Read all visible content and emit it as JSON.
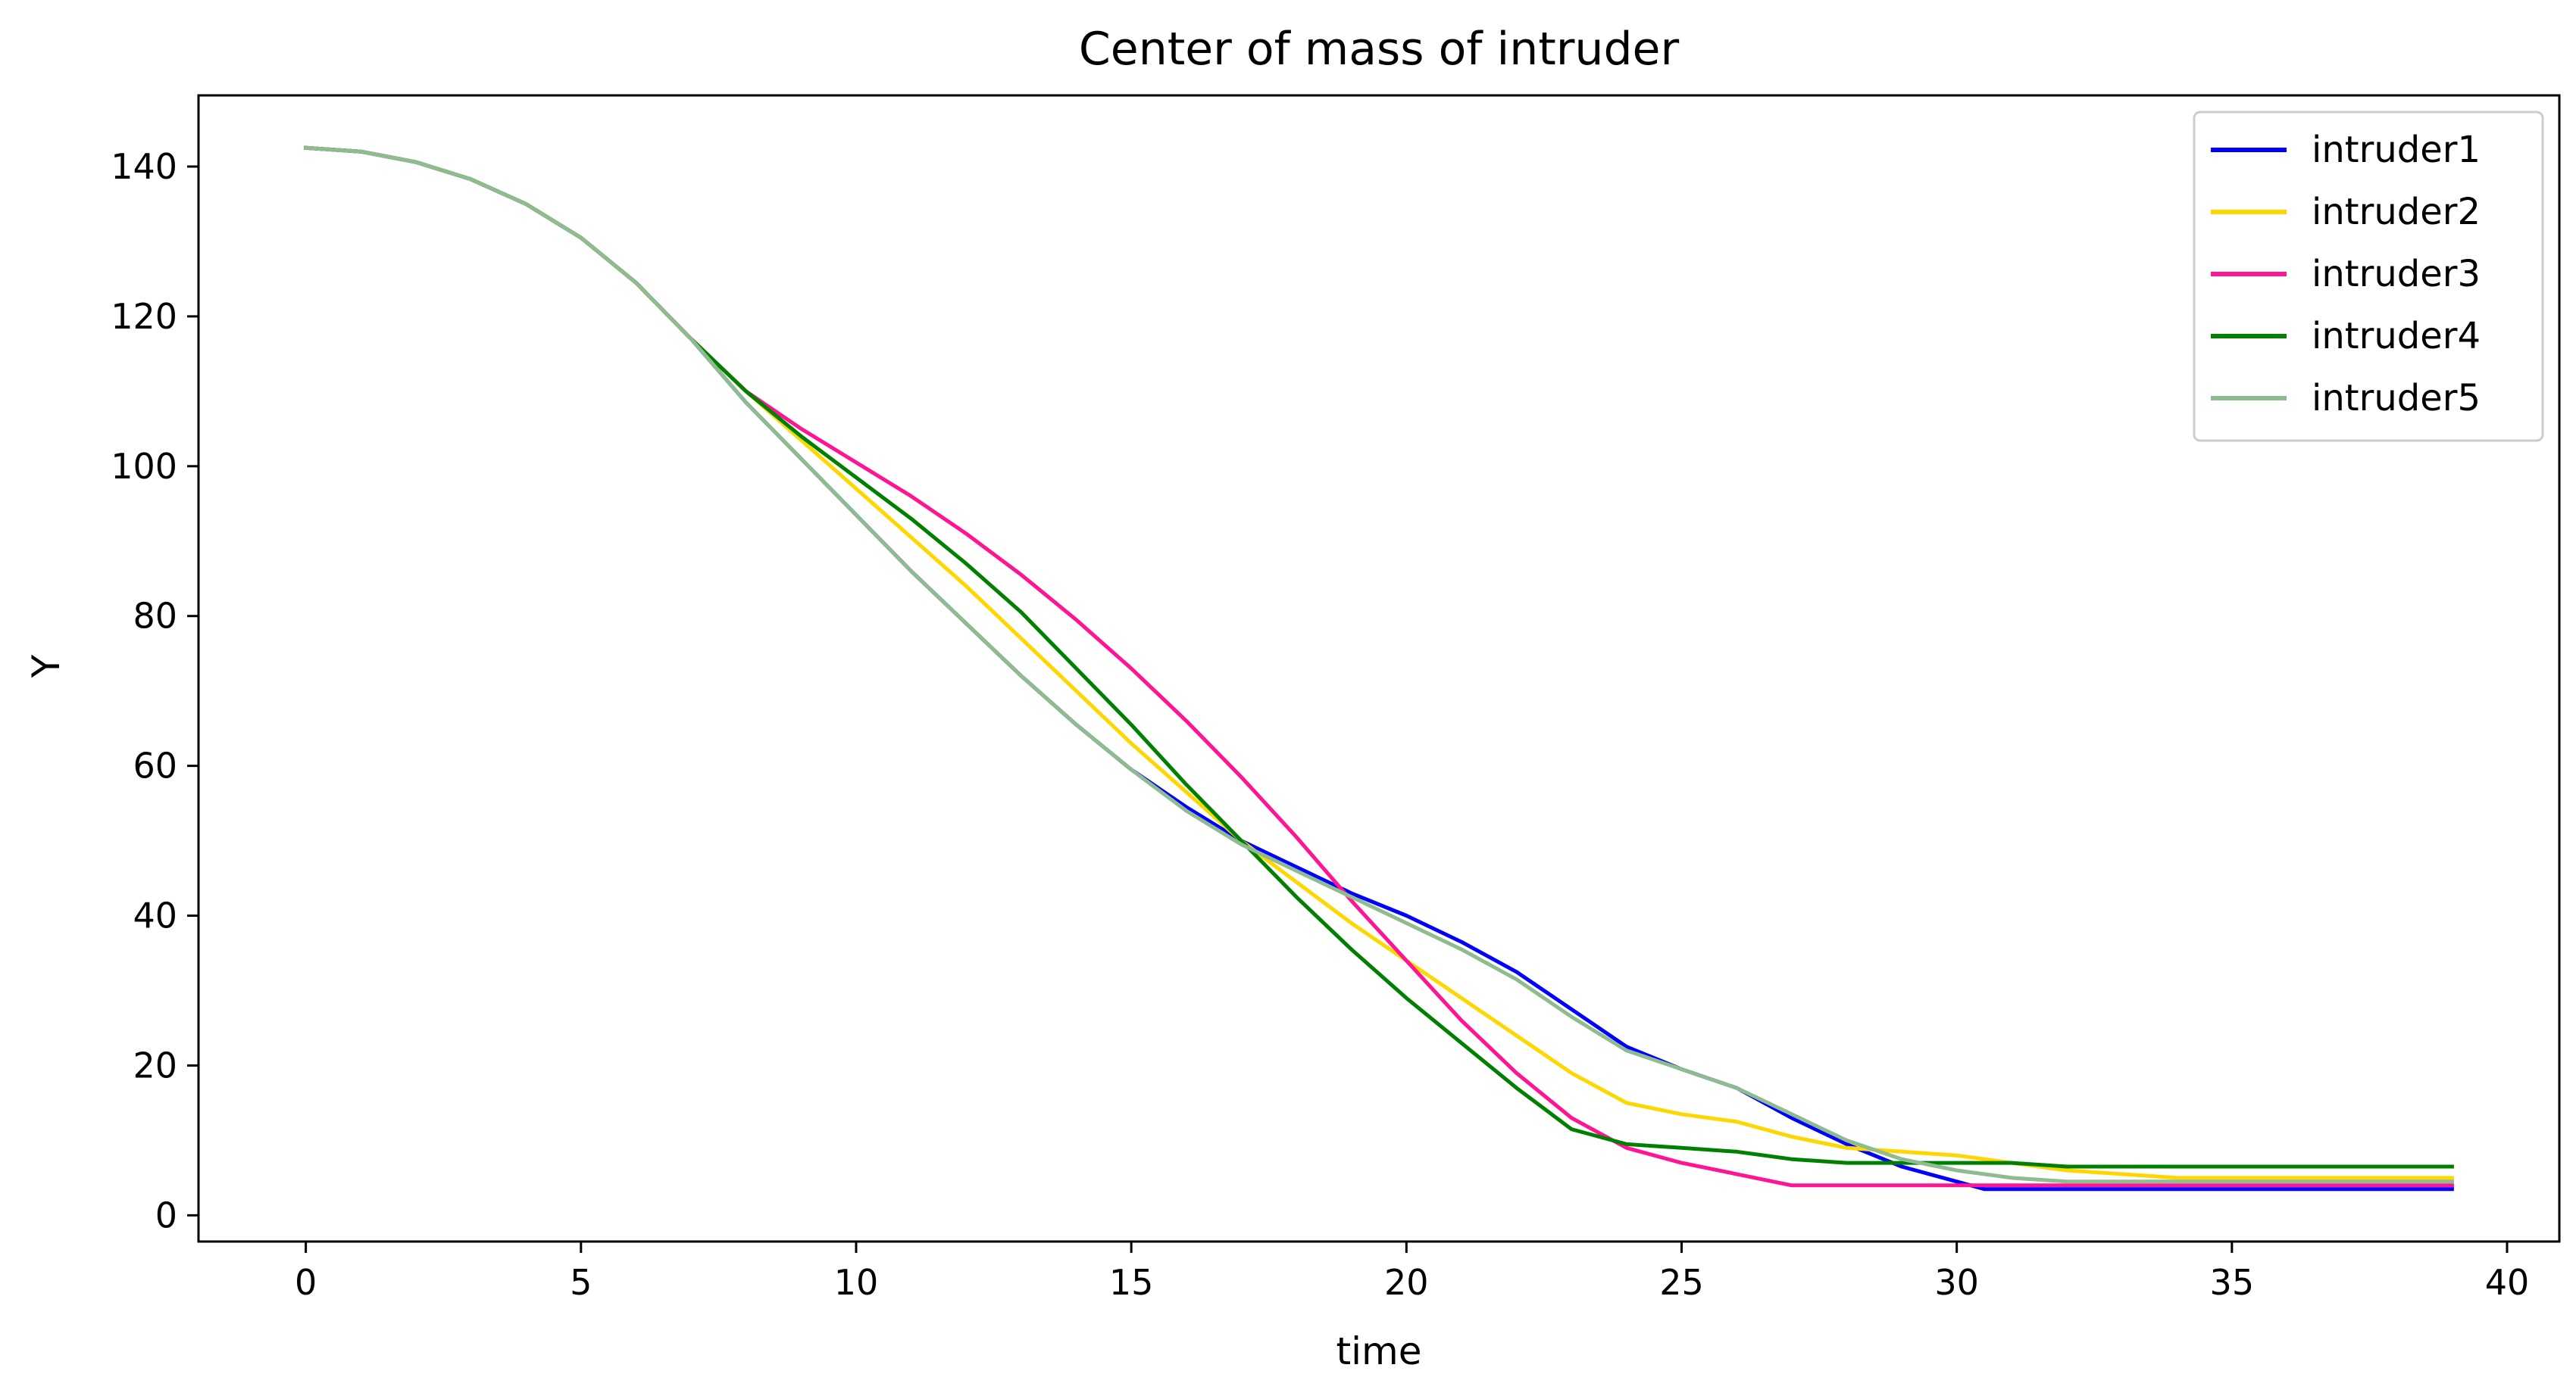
{
  "chart_data": {
    "type": "line",
    "title": "Center of mass of intruder",
    "xlabel": "time",
    "ylabel": "Y",
    "xlim": [
      -1.95,
      40.95
    ],
    "ylim": [
      -3.5,
      149.5
    ],
    "xticks": [
      0,
      5,
      10,
      15,
      20,
      25,
      30,
      35,
      40
    ],
    "yticks": [
      0,
      20,
      40,
      60,
      80,
      100,
      120,
      140
    ],
    "grid": false,
    "legend_position": "top-right",
    "series": [
      {
        "name": "intruder1",
        "color": "#0000ff",
        "points": [
          [
            0,
            142.5
          ],
          [
            1,
            142.0
          ],
          [
            2,
            140.6
          ],
          [
            3,
            138.3
          ],
          [
            4,
            135.0
          ],
          [
            5,
            130.5
          ],
          [
            6,
            124.5
          ],
          [
            7,
            117.0
          ],
          [
            8,
            108.5
          ],
          [
            9,
            101.0
          ],
          [
            10,
            93.5
          ],
          [
            11,
            86.0
          ],
          [
            12,
            79.0
          ],
          [
            13,
            72.0
          ],
          [
            14,
            65.5
          ],
          [
            15,
            59.5
          ],
          [
            16,
            54.5
          ],
          [
            17,
            50.0
          ],
          [
            18,
            46.5
          ],
          [
            19,
            43.0
          ],
          [
            20,
            40.0
          ],
          [
            21,
            36.5
          ],
          [
            22,
            32.5
          ],
          [
            23,
            27.5
          ],
          [
            24,
            22.5
          ],
          [
            25,
            19.5
          ],
          [
            26,
            17.0
          ],
          [
            27,
            13.0
          ],
          [
            28,
            9.5
          ],
          [
            29,
            6.5
          ],
          [
            30,
            4.5
          ],
          [
            30.5,
            3.5
          ],
          [
            31,
            3.5
          ],
          [
            32,
            3.5
          ],
          [
            33,
            3.5
          ],
          [
            34,
            3.5
          ],
          [
            35,
            3.5
          ],
          [
            36,
            3.5
          ],
          [
            37,
            3.5
          ],
          [
            38,
            3.5
          ],
          [
            39,
            3.5
          ]
        ]
      },
      {
        "name": "intruder2",
        "color": "#ffd700",
        "points": [
          [
            0,
            142.5
          ],
          [
            1,
            142.0
          ],
          [
            2,
            140.6
          ],
          [
            3,
            138.3
          ],
          [
            4,
            135.0
          ],
          [
            5,
            130.5
          ],
          [
            6,
            124.5
          ],
          [
            7,
            117.0
          ],
          [
            8,
            110.0
          ],
          [
            9,
            103.5
          ],
          [
            10,
            97.0
          ],
          [
            11,
            90.5
          ],
          [
            12,
            84.0
          ],
          [
            13,
            77.0
          ],
          [
            14,
            70.0
          ],
          [
            15,
            63.0
          ],
          [
            16,
            56.5
          ],
          [
            17,
            50.0
          ],
          [
            18,
            44.5
          ],
          [
            19,
            39.0
          ],
          [
            20,
            34.0
          ],
          [
            21,
            29.0
          ],
          [
            22,
            24.0
          ],
          [
            23,
            19.0
          ],
          [
            24,
            15.0
          ],
          [
            25,
            13.5
          ],
          [
            26,
            12.5
          ],
          [
            27,
            10.5
          ],
          [
            28,
            9.0
          ],
          [
            29,
            8.5
          ],
          [
            30,
            8.0
          ],
          [
            31,
            7.0
          ],
          [
            32,
            6.0
          ],
          [
            33,
            5.5
          ],
          [
            34,
            5.0
          ],
          [
            35,
            5.0
          ],
          [
            36,
            5.0
          ],
          [
            37,
            5.0
          ],
          [
            38,
            5.0
          ],
          [
            39,
            5.0
          ]
        ]
      },
      {
        "name": "intruder3",
        "color": "#ff1493",
        "points": [
          [
            0,
            142.5
          ],
          [
            1,
            142.0
          ],
          [
            2,
            140.6
          ],
          [
            3,
            138.3
          ],
          [
            4,
            135.0
          ],
          [
            5,
            130.5
          ],
          [
            6,
            124.5
          ],
          [
            7,
            117.0
          ],
          [
            8,
            110.0
          ],
          [
            9,
            105.0
          ],
          [
            10,
            100.5
          ],
          [
            11,
            96.0
          ],
          [
            12,
            91.0
          ],
          [
            13,
            85.5
          ],
          [
            14,
            79.5
          ],
          [
            15,
            73.0
          ],
          [
            16,
            66.0
          ],
          [
            17,
            58.5
          ],
          [
            18,
            50.5
          ],
          [
            19,
            42.0
          ],
          [
            20,
            34.0
          ],
          [
            21,
            26.0
          ],
          [
            22,
            19.0
          ],
          [
            23,
            13.0
          ],
          [
            24,
            9.0
          ],
          [
            25,
            7.0
          ],
          [
            26,
            5.5
          ],
          [
            27,
            4.0
          ],
          [
            28,
            4.0
          ],
          [
            29,
            4.0
          ],
          [
            30,
            4.0
          ],
          [
            31,
            4.0
          ],
          [
            32,
            4.0
          ],
          [
            33,
            4.0
          ],
          [
            34,
            4.0
          ],
          [
            35,
            4.0
          ],
          [
            36,
            4.0
          ],
          [
            37,
            4.0
          ],
          [
            38,
            4.0
          ],
          [
            39,
            4.0
          ]
        ]
      },
      {
        "name": "intruder4",
        "color": "#008000",
        "points": [
          [
            0,
            142.5
          ],
          [
            1,
            142.0
          ],
          [
            2,
            140.6
          ],
          [
            3,
            138.3
          ],
          [
            4,
            135.0
          ],
          [
            5,
            130.5
          ],
          [
            6,
            124.5
          ],
          [
            7,
            117.0
          ],
          [
            8,
            110.0
          ],
          [
            9,
            104.0
          ],
          [
            10,
            98.5
          ],
          [
            11,
            93.0
          ],
          [
            12,
            87.0
          ],
          [
            13,
            80.5
          ],
          [
            14,
            73.0
          ],
          [
            15,
            65.5
          ],
          [
            16,
            57.5
          ],
          [
            17,
            50.0
          ],
          [
            18,
            42.5
          ],
          [
            19,
            35.5
          ],
          [
            20,
            29.0
          ],
          [
            21,
            23.0
          ],
          [
            22,
            17.0
          ],
          [
            23,
            11.5
          ],
          [
            24,
            9.5
          ],
          [
            25,
            9.0
          ],
          [
            26,
            8.5
          ],
          [
            27,
            7.5
          ],
          [
            28,
            7.0
          ],
          [
            29,
            7.0
          ],
          [
            30,
            7.0
          ],
          [
            31,
            7.0
          ],
          [
            32,
            6.5
          ],
          [
            33,
            6.5
          ],
          [
            34,
            6.5
          ],
          [
            35,
            6.5
          ],
          [
            36,
            6.5
          ],
          [
            37,
            6.5
          ],
          [
            38,
            6.5
          ],
          [
            39,
            6.5
          ]
        ]
      },
      {
        "name": "intruder5",
        "color": "#8fbc8f",
        "points": [
          [
            0,
            142.5
          ],
          [
            1,
            142.0
          ],
          [
            2,
            140.6
          ],
          [
            3,
            138.3
          ],
          [
            4,
            135.0
          ],
          [
            5,
            130.5
          ],
          [
            6,
            124.5
          ],
          [
            7,
            117.0
          ],
          [
            8,
            108.5
          ],
          [
            9,
            101.0
          ],
          [
            10,
            93.5
          ],
          [
            11,
            86.0
          ],
          [
            12,
            79.0
          ],
          [
            13,
            72.0
          ],
          [
            14,
            65.5
          ],
          [
            15,
            59.5
          ],
          [
            16,
            54.0
          ],
          [
            17,
            49.5
          ],
          [
            18,
            46.0
          ],
          [
            19,
            42.5
          ],
          [
            20,
            39.0
          ],
          [
            21,
            35.5
          ],
          [
            22,
            31.5
          ],
          [
            23,
            26.5
          ],
          [
            24,
            22.0
          ],
          [
            25,
            19.5
          ],
          [
            26,
            17.0
          ],
          [
            27,
            13.5
          ],
          [
            28,
            10.0
          ],
          [
            29,
            7.5
          ],
          [
            30,
            6.0
          ],
          [
            31,
            5.0
          ],
          [
            32,
            4.5
          ],
          [
            33,
            4.5
          ],
          [
            34,
            4.5
          ],
          [
            35,
            4.5
          ],
          [
            36,
            4.5
          ],
          [
            37,
            4.5
          ],
          [
            38,
            4.5
          ],
          [
            39,
            4.5
          ]
        ]
      }
    ]
  }
}
